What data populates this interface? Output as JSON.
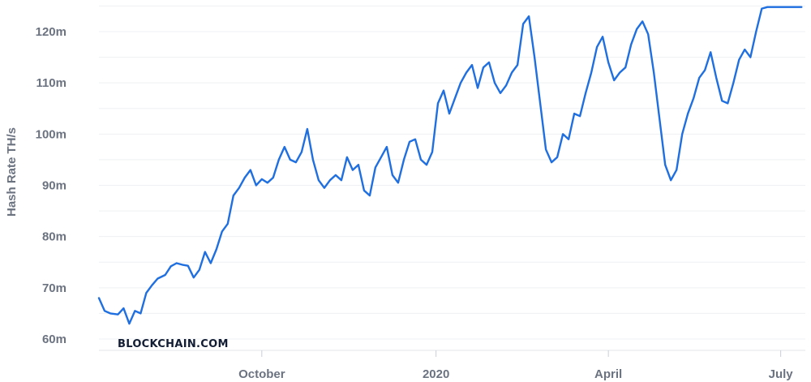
{
  "chart_data": {
    "type": "line",
    "ylabel": "Hash Rate TH/s",
    "watermark": "BLOCKCHAIN.COM",
    "ylim": [
      58000000,
      126000000
    ],
    "xlim": [
      "2019-07-07",
      "2020-07-14"
    ],
    "y_ticks": [
      {
        "value": 60000000,
        "label": "60m"
      },
      {
        "value": 70000000,
        "label": "70m"
      },
      {
        "value": 80000000,
        "label": "80m"
      },
      {
        "value": 90000000,
        "label": "90m"
      },
      {
        "value": 100000000,
        "label": "100m"
      },
      {
        "value": 110000000,
        "label": "110m"
      },
      {
        "value": 120000000,
        "label": "120m"
      }
    ],
    "x_ticks": [
      {
        "date": "2019-10-01",
        "label": "October"
      },
      {
        "date": "2020-01-01",
        "label": "2020"
      },
      {
        "date": "2020-04-01",
        "label": "April"
      },
      {
        "date": "2020-07-01",
        "label": "July"
      }
    ],
    "grid": "horizontal",
    "line_color": "#1f6fe0",
    "series": [
      {
        "x": [
          "2019-07-07",
          "2019-07-10",
          "2019-07-13",
          "2019-07-17",
          "2019-07-20",
          "2019-07-23",
          "2019-07-26",
          "2019-07-29",
          "2019-08-01",
          "2019-08-04",
          "2019-08-07",
          "2019-08-11",
          "2019-08-14",
          "2019-08-17",
          "2019-08-20",
          "2019-08-23",
          "2019-08-26",
          "2019-08-29",
          "2019-09-01",
          "2019-09-04",
          "2019-09-07",
          "2019-09-10",
          "2019-09-13",
          "2019-09-16",
          "2019-09-19",
          "2019-09-22",
          "2019-09-25",
          "2019-09-28",
          "2019-10-01",
          "2019-10-04",
          "2019-10-07",
          "2019-10-10",
          "2019-10-13",
          "2019-10-16",
          "2019-10-19",
          "2019-10-22",
          "2019-10-25",
          "2019-10-28",
          "2019-10-31",
          "2019-11-03",
          "2019-11-06",
          "2019-11-09",
          "2019-11-12",
          "2019-11-15",
          "2019-11-18",
          "2019-11-21",
          "2019-11-24",
          "2019-11-27",
          "2019-11-30",
          "2019-12-03",
          "2019-12-06",
          "2019-12-09",
          "2019-12-12",
          "2019-12-15",
          "2019-12-18",
          "2019-12-21",
          "2019-12-24",
          "2019-12-27",
          "2019-12-30",
          "2020-01-02",
          "2020-01-05",
          "2020-01-08",
          "2020-01-11",
          "2020-01-14",
          "2020-01-17",
          "2020-01-20",
          "2020-01-23",
          "2020-01-26",
          "2020-01-29",
          "2020-02-01",
          "2020-02-04",
          "2020-02-07",
          "2020-02-10",
          "2020-02-13",
          "2020-02-16",
          "2020-02-19",
          "2020-02-22",
          "2020-02-25",
          "2020-02-28",
          "2020-03-02",
          "2020-03-05",
          "2020-03-08",
          "2020-03-11",
          "2020-03-14",
          "2020-03-17",
          "2020-03-20",
          "2020-03-23",
          "2020-03-26",
          "2020-03-29",
          "2020-04-01",
          "2020-04-04",
          "2020-04-07",
          "2020-04-10",
          "2020-04-13",
          "2020-04-16",
          "2020-04-19",
          "2020-04-22",
          "2020-04-25",
          "2020-04-28",
          "2020-05-01",
          "2020-05-04",
          "2020-05-07",
          "2020-05-10",
          "2020-05-13",
          "2020-05-16",
          "2020-05-19",
          "2020-05-22",
          "2020-05-25",
          "2020-05-28",
          "2020-05-31",
          "2020-06-03",
          "2020-06-06",
          "2020-06-09",
          "2020-06-12",
          "2020-06-15",
          "2020-06-18",
          "2020-06-21",
          "2020-06-24",
          "2020-06-27",
          "2020-06-30",
          "2020-07-03",
          "2020-07-06",
          "2020-07-09",
          "2020-07-12"
        ],
        "values": [
          68000000,
          65500000,
          65000000,
          64800000,
          66000000,
          63000000,
          65500000,
          65000000,
          69000000,
          70500000,
          71800000,
          72500000,
          74200000,
          74800000,
          74500000,
          74300000,
          72000000,
          73500000,
          77000000,
          74800000,
          77500000,
          81000000,
          82500000,
          88000000,
          89500000,
          91500000,
          93000000,
          90000000,
          91200000,
          90500000,
          91500000,
          95000000,
          97500000,
          95000000,
          94500000,
          96500000,
          101000000,
          95000000,
          91000000,
          89500000,
          91000000,
          92000000,
          91000000,
          95500000,
          93000000,
          94000000,
          89000000,
          88000000,
          93500000,
          95500000,
          97500000,
          92000000,
          90500000,
          95000000,
          98500000,
          99000000,
          95000000,
          94000000,
          96500000,
          106000000,
          108500000,
          104000000,
          107000000,
          110000000,
          112000000,
          113500000,
          109000000,
          113000000,
          114000000,
          110000000,
          108000000,
          109500000,
          112000000,
          113500000,
          121500000,
          123000000,
          115000000,
          106000000,
          97000000,
          94500000,
          95500000,
          100000000,
          99000000,
          104000000,
          103500000,
          108000000,
          112000000,
          117000000,
          119000000,
          114000000,
          110500000,
          112000000,
          113000000,
          117500000,
          120500000,
          122000000,
          119500000,
          112000000,
          103000000,
          94000000,
          91000000,
          93000000,
          100000000,
          104000000,
          107000000,
          111000000,
          112500000,
          116000000,
          111000000,
          106500000,
          106000000,
          110000000,
          114500000,
          116500000,
          115000000,
          120000000,
          124500000,
          124800000,
          124800000,
          124800000,
          124800000,
          124800000,
          124800000,
          124800000
        ]
      }
    ]
  }
}
